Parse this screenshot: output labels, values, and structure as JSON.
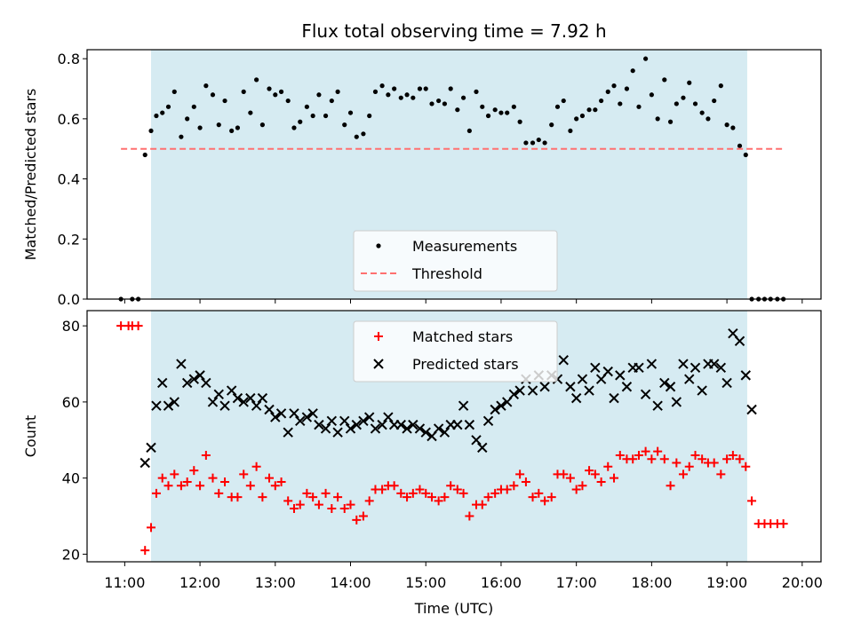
{
  "chart_data": [
    {
      "type": "scatter",
      "title": "Flux total observing time = 7.92 h",
      "xlabel": "",
      "ylabel": "Matched/Predicted stars",
      "ylim": [
        0,
        0.83
      ],
      "xlim": [
        10.5,
        20.25
      ],
      "yticks": [
        "0.0",
        "0.2",
        "0.4",
        "0.6",
        "0.8"
      ],
      "shaded_span": [
        11.35,
        19.27
      ],
      "grid": false,
      "legend_position": "lower center",
      "series": [
        {
          "name": "Measurements",
          "marker": "dot",
          "color": "#000000",
          "x": [
            10.95,
            11.1,
            11.18,
            11.27,
            11.35,
            11.42,
            11.5,
            11.58,
            11.66,
            11.75,
            11.83,
            11.92,
            12.0,
            12.08,
            12.17,
            12.25,
            12.33,
            12.42,
            12.5,
            12.58,
            12.67,
            12.75,
            12.83,
            12.92,
            13.0,
            13.08,
            13.17,
            13.25,
            13.33,
            13.42,
            13.5,
            13.58,
            13.67,
            13.75,
            13.83,
            13.92,
            14.0,
            14.08,
            14.17,
            14.25,
            14.33,
            14.42,
            14.5,
            14.58,
            14.67,
            14.75,
            14.83,
            14.92,
            15.0,
            15.08,
            15.17,
            15.25,
            15.33,
            15.42,
            15.5,
            15.58,
            15.67,
            15.75,
            15.83,
            15.92,
            16.0,
            16.08,
            16.17,
            16.25,
            16.33,
            16.42,
            16.5,
            16.58,
            16.67,
            16.75,
            16.83,
            16.92,
            17.0,
            17.08,
            17.17,
            17.25,
            17.33,
            17.42,
            17.5,
            17.58,
            17.67,
            17.75,
            17.83,
            17.92,
            18.0,
            18.08,
            18.17,
            18.25,
            18.33,
            18.42,
            18.5,
            18.58,
            18.67,
            18.75,
            18.83,
            18.92,
            19.0,
            19.08,
            19.17,
            19.25,
            19.33,
            19.42,
            19.5,
            19.58,
            19.67,
            19.75
          ],
          "y": [
            0.0,
            0.0,
            0.0,
            0.48,
            0.56,
            0.61,
            0.62,
            0.64,
            0.69,
            0.54,
            0.6,
            0.64,
            0.57,
            0.71,
            0.68,
            0.58,
            0.66,
            0.56,
            0.57,
            0.69,
            0.62,
            0.73,
            0.58,
            0.7,
            0.68,
            0.69,
            0.66,
            0.57,
            0.59,
            0.64,
            0.61,
            0.68,
            0.61,
            0.66,
            0.69,
            0.58,
            0.62,
            0.54,
            0.55,
            0.61,
            0.69,
            0.71,
            0.68,
            0.7,
            0.67,
            0.68,
            0.67,
            0.7,
            0.7,
            0.65,
            0.66,
            0.65,
            0.7,
            0.63,
            0.67,
            0.56,
            0.69,
            0.64,
            0.61,
            0.63,
            0.62,
            0.62,
            0.64,
            0.59,
            0.52,
            0.52,
            0.53,
            0.52,
            0.58,
            0.64,
            0.66,
            0.56,
            0.6,
            0.61,
            0.63,
            0.63,
            0.66,
            0.69,
            0.71,
            0.65,
            0.7,
            0.76,
            0.64,
            0.8,
            0.68,
            0.6,
            0.73,
            0.59,
            0.65,
            0.67,
            0.72,
            0.65,
            0.62,
            0.6,
            0.66,
            0.71,
            0.58,
            0.57,
            0.51,
            0.48,
            0.0,
            0.0,
            0.0,
            0.0,
            0.0,
            0.0
          ]
        },
        {
          "name": "Threshold",
          "marker": "dashed-line",
          "color": "#ff7070",
          "x": [
            10.95,
            19.75
          ],
          "y": [
            0.5,
            0.5
          ]
        }
      ]
    },
    {
      "type": "scatter",
      "title": "",
      "xlabel": "Time (UTC)",
      "ylabel": "Count",
      "ylim": [
        18,
        84
      ],
      "xlim": [
        10.5,
        20.25
      ],
      "yticks": [
        "20",
        "40",
        "60",
        "80"
      ],
      "xticks": [
        "11:00",
        "12:00",
        "13:00",
        "14:00",
        "15:00",
        "16:00",
        "17:00",
        "18:00",
        "19:00",
        "20:00"
      ],
      "xtick_values": [
        11,
        12,
        13,
        14,
        15,
        16,
        17,
        18,
        19,
        20
      ],
      "shaded_span": [
        11.35,
        19.27
      ],
      "grid": false,
      "legend_position": "upper center",
      "series": [
        {
          "name": "Matched stars",
          "marker": "plus",
          "color": "#ff0000",
          "x": [
            10.95,
            11.05,
            11.1,
            11.18,
            11.27,
            11.35,
            11.42,
            11.5,
            11.58,
            11.66,
            11.75,
            11.83,
            11.92,
            12.0,
            12.08,
            12.17,
            12.25,
            12.33,
            12.42,
            12.5,
            12.58,
            12.67,
            12.75,
            12.83,
            12.92,
            13.0,
            13.08,
            13.17,
            13.25,
            13.33,
            13.42,
            13.5,
            13.58,
            13.67,
            13.75,
            13.83,
            13.92,
            14.0,
            14.08,
            14.17,
            14.25,
            14.33,
            14.42,
            14.5,
            14.58,
            14.67,
            14.75,
            14.83,
            14.92,
            15.0,
            15.08,
            15.17,
            15.25,
            15.33,
            15.42,
            15.5,
            15.58,
            15.67,
            15.75,
            15.83,
            15.92,
            16.0,
            16.08,
            16.17,
            16.25,
            16.33,
            16.42,
            16.5,
            16.58,
            16.67,
            16.75,
            16.83,
            16.92,
            17.0,
            17.08,
            17.17,
            17.25,
            17.33,
            17.42,
            17.5,
            17.58,
            17.67,
            17.75,
            17.83,
            17.92,
            18.0,
            18.08,
            18.17,
            18.25,
            18.33,
            18.42,
            18.5,
            18.58,
            18.67,
            18.75,
            18.83,
            18.92,
            19.0,
            19.08,
            19.17,
            19.25,
            19.33,
            19.42,
            19.5,
            19.58,
            19.67,
            19.75
          ],
          "y": [
            80,
            80,
            80,
            80,
            21,
            27,
            36,
            40,
            38,
            41,
            38,
            39,
            42,
            38,
            46,
            40,
            36,
            39,
            35,
            35,
            41,
            38,
            43,
            35,
            40,
            38,
            39,
            34,
            32,
            33,
            36,
            35,
            33,
            36,
            32,
            35,
            32,
            33,
            29,
            30,
            34,
            37,
            37,
            38,
            38,
            36,
            35,
            36,
            37,
            36,
            35,
            34,
            35,
            38,
            37,
            36,
            30,
            33,
            33,
            35,
            36,
            37,
            37,
            38,
            41,
            39,
            35,
            36,
            34,
            35,
            41,
            41,
            40,
            37,
            38,
            42,
            41,
            39,
            43,
            40,
            46,
            45,
            45,
            46,
            47,
            45,
            47,
            45,
            38,
            44,
            41,
            43,
            46,
            45,
            44,
            44,
            41,
            45,
            46,
            45,
            43,
            34,
            28,
            28,
            28,
            28,
            28
          ]
        },
        {
          "name": "Predicted stars",
          "marker": "x",
          "color": "#000000",
          "x": [
            11.27,
            11.35,
            11.42,
            11.5,
            11.58,
            11.66,
            11.75,
            11.83,
            11.92,
            12.0,
            12.08,
            12.17,
            12.25,
            12.33,
            12.42,
            12.5,
            12.58,
            12.67,
            12.75,
            12.83,
            12.92,
            13.0,
            13.08,
            13.17,
            13.25,
            13.33,
            13.42,
            13.5,
            13.58,
            13.67,
            13.75,
            13.83,
            13.92,
            14.0,
            14.08,
            14.17,
            14.25,
            14.33,
            14.42,
            14.5,
            14.58,
            14.67,
            14.75,
            14.83,
            14.92,
            15.0,
            15.08,
            15.17,
            15.25,
            15.33,
            15.42,
            15.5,
            15.58,
            15.67,
            15.75,
            15.83,
            15.92,
            16.0,
            16.08,
            16.17,
            16.25,
            16.33,
            16.42,
            16.5,
            16.58,
            16.67,
            16.75,
            16.83,
            16.92,
            17.0,
            17.08,
            17.17,
            17.25,
            17.33,
            17.42,
            17.5,
            17.58,
            17.67,
            17.75,
            17.83,
            17.92,
            18.0,
            18.08,
            18.17,
            18.25,
            18.33,
            18.42,
            18.5,
            18.58,
            18.67,
            18.75,
            18.83,
            18.92,
            19.0,
            19.08,
            19.17,
            19.25,
            19.33
          ],
          "y": [
            44,
            48,
            59,
            65,
            59,
            60,
            70,
            65,
            66,
            67,
            65,
            60,
            62,
            59,
            63,
            61,
            60,
            61,
            59,
            61,
            58,
            56,
            57,
            52,
            57,
            55,
            56,
            57,
            54,
            53,
            55,
            52,
            55,
            53,
            54,
            55,
            56,
            53,
            54,
            56,
            54,
            54,
            53,
            54,
            53,
            52,
            51,
            53,
            52,
            54,
            54,
            59,
            54,
            50,
            48,
            55,
            58,
            59,
            60,
            62,
            63,
            66,
            63,
            67,
            64,
            67,
            66,
            71,
            64,
            61,
            66,
            63,
            69,
            66,
            68,
            61,
            67,
            64,
            69,
            69,
            62,
            70,
            59,
            65,
            64,
            60,
            70,
            66,
            69,
            63,
            70,
            70,
            69,
            65,
            78,
            76,
            67,
            58
          ]
        }
      ]
    }
  ]
}
